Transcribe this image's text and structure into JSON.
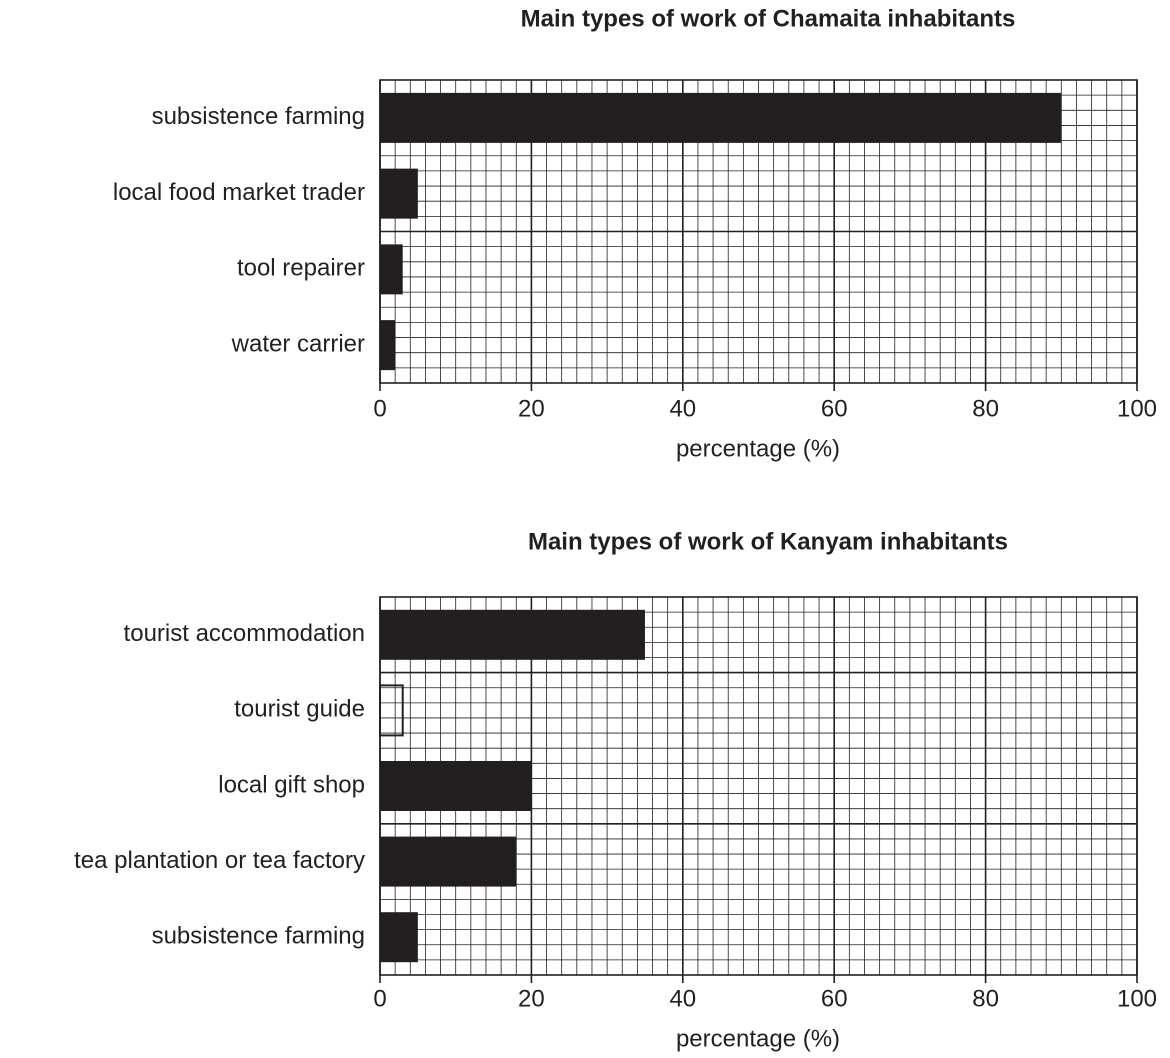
{
  "chart_data": [
    {
      "type": "bar",
      "orientation": "horizontal",
      "title": "Main types of work of Chamaita inhabitants",
      "categories": [
        "subsistence farming",
        "local food market trader",
        "tool repairer",
        "water carrier"
      ],
      "values": [
        90,
        5,
        3,
        2
      ],
      "color": "#231f20",
      "xlim": [
        0,
        100
      ],
      "xticks": [
        0,
        20,
        40,
        60,
        80,
        100
      ],
      "xlabel": "percentage (%)",
      "grid": true
    },
    {
      "type": "bar",
      "orientation": "horizontal",
      "title": "Main types of work of Kanyam inhabitants",
      "categories": [
        "tourist accommodation",
        "tourist guide",
        "local gift shop",
        "tea plantation or tea factory",
        "subsistence farming"
      ],
      "values": [
        35,
        3,
        20,
        18,
        5
      ],
      "bar_styles": [
        "filled",
        "outline",
        "filled",
        "filled",
        "filled"
      ],
      "color": "#231f20",
      "xlim": [
        0,
        100
      ],
      "xticks": [
        0,
        20,
        40,
        60,
        80,
        100
      ],
      "xlabel": "percentage (%)",
      "grid": true
    }
  ]
}
